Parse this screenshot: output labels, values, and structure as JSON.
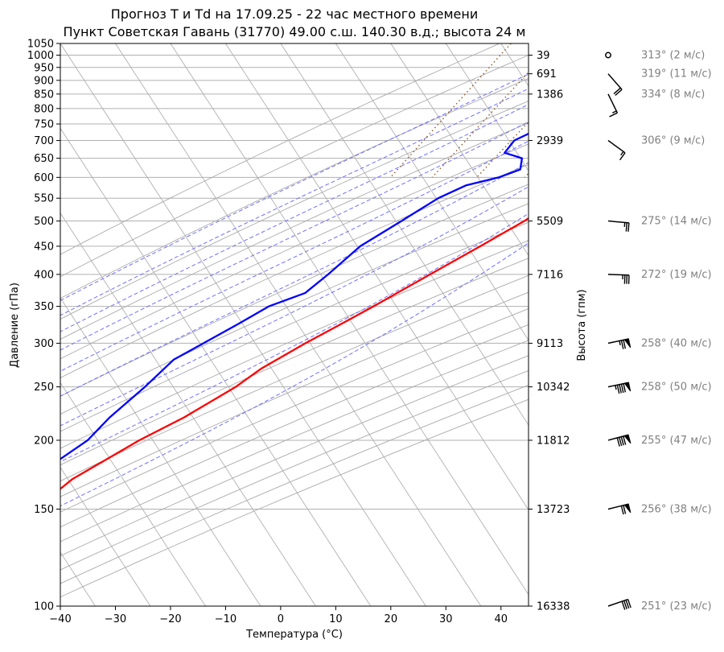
{
  "chart_data": {
    "type": "line",
    "title_line1": "Прогноз T и Td на 17.09.25 - 22 час местного времени",
    "title_line2": "Пункт Советская Гавань (31770) 49.00 с.ш. 140.30 в.д.; высота 24 м",
    "xlabel": "Температура (°C)",
    "ylabel": "Давление (гПа)",
    "ylabel_right": "Высота (гпм)",
    "xlim": [
      -40,
      45
    ],
    "ylim": [
      1050,
      100
    ],
    "y_scale": "log",
    "x_ticks": [
      "−40",
      "−30",
      "−20",
      "−10",
      "0",
      "10",
      "20",
      "30",
      "40"
    ],
    "y_ticks": [
      {
        "p": 100,
        "label": "100"
      },
      {
        "p": 150,
        "label": "150"
      },
      {
        "p": 200,
        "label": "200"
      },
      {
        "p": 250,
        "label": "250"
      },
      {
        "p": 300,
        "label": "300"
      },
      {
        "p": 350,
        "label": "350"
      },
      {
        "p": 400,
        "label": "400"
      },
      {
        "p": 450,
        "label": "450"
      },
      {
        "p": 500,
        "label": "500"
      },
      {
        "p": 550,
        "label": "550"
      },
      {
        "p": 600,
        "label": "600"
      },
      {
        "p": 650,
        "label": "650"
      },
      {
        "p": 700,
        "label": "700"
      },
      {
        "p": 750,
        "label": "750"
      },
      {
        "p": 800,
        "label": "800"
      },
      {
        "p": 850,
        "label": "850"
      },
      {
        "p": 900,
        "label": "900"
      },
      {
        "p": 950,
        "label": "950"
      },
      {
        "p": 1000,
        "label": "1000"
      },
      {
        "p": 1050,
        "label": "1050"
      }
    ],
    "height_labels": [
      {
        "p": 100,
        "label": "16338"
      },
      {
        "p": 150,
        "label": "13723"
      },
      {
        "p": 200,
        "label": "11812"
      },
      {
        "p": 250,
        "label": "10342"
      },
      {
        "p": 300,
        "label": "9113"
      },
      {
        "p": 400,
        "label": "7116"
      },
      {
        "p": 500,
        "label": "5509"
      },
      {
        "p": 700,
        "label": "2939"
      },
      {
        "p": 850,
        "label": "1386"
      },
      {
        "p": 925,
        "label": "691"
      },
      {
        "p": 1000,
        "label": "39"
      }
    ],
    "series": [
      {
        "color": "#ff0000",
        "points": [
          [
            1000,
            15.0
          ],
          [
            995,
            16.5
          ],
          [
            970,
            17.0
          ],
          [
            925,
            16.0
          ],
          [
            900,
            15.3
          ],
          [
            850,
            12.8
          ],
          [
            800,
            10.0
          ],
          [
            750,
            8.0
          ],
          [
            700,
            8.5
          ],
          [
            650,
            7.6
          ],
          [
            600,
            6.0
          ],
          [
            550,
            2.7
          ],
          [
            500,
            -1.2
          ],
          [
            450,
            -6.2
          ],
          [
            400,
            -12.0
          ],
          [
            350,
            -18.5
          ],
          [
            325,
            -22.3
          ],
          [
            300,
            -26.5
          ],
          [
            270,
            -31.5
          ],
          [
            250,
            -34.0
          ],
          [
            220,
            -39.8
          ],
          [
            200,
            -45.2
          ],
          [
            170,
            -52.8
          ],
          [
            150,
            -56.0
          ],
          [
            130,
            -59.5
          ],
          [
            115,
            -62.0
          ],
          [
            100,
            -63.0
          ]
        ]
      },
      {
        "color": "#0000ff",
        "points": [
          [
            1000,
            8.5
          ],
          [
            985,
            7.0
          ],
          [
            950,
            6.2
          ],
          [
            925,
            3.3
          ],
          [
            900,
            0.0
          ],
          [
            850,
            -4.5
          ],
          [
            800,
            -6.5
          ],
          [
            760,
            -7.3
          ],
          [
            700,
            -12.5
          ],
          [
            665,
            -12.8
          ],
          [
            650,
            -9.0
          ],
          [
            620,
            -8.0
          ],
          [
            600,
            -11.0
          ],
          [
            580,
            -16.0
          ],
          [
            550,
            -19.5
          ],
          [
            500,
            -23.5
          ],
          [
            450,
            -28.0
          ],
          [
            400,
            -30.5
          ],
          [
            370,
            -32.5
          ],
          [
            350,
            -37.5
          ],
          [
            325,
            -41.0
          ],
          [
            300,
            -45.0
          ],
          [
            280,
            -48.5
          ],
          [
            250,
            -50.5
          ],
          [
            220,
            -53.3
          ],
          [
            200,
            -54.6
          ],
          [
            170,
            -60.3
          ],
          [
            150,
            -63.3
          ],
          [
            130,
            -66.0
          ],
          [
            115,
            -69.3
          ],
          [
            100,
            -72.3
          ]
        ]
      }
    ],
    "dry_adiabats_theta_C": [
      -30,
      -20,
      -10,
      0,
      10,
      20,
      30,
      40,
      50,
      60,
      70,
      80,
      90,
      100,
      110,
      120,
      130,
      140,
      150,
      160,
      170
    ],
    "moist_adiabats_C": [
      -10,
      -5,
      0,
      5,
      10,
      15,
      20,
      25,
      30
    ],
    "mixing_ratio_lines_gkg": [
      0.5,
      1,
      2,
      4,
      8,
      12,
      16,
      24
    ],
    "parcel_line": [
      [
        1000,
        15.0
      ],
      [
        370,
        40.5
      ]
    ],
    "wind_barbs": [
      {
        "p": 100,
        "label": "251° (23 м/с)"
      },
      {
        "p": 150,
        "label": "256° (38 м/с)"
      },
      {
        "p": 200,
        "label": "255° (47 м/с)"
      },
      {
        "p": 250,
        "label": "258° (50 м/с)"
      },
      {
        "p": 300,
        "label": "258° (40 м/с)"
      },
      {
        "p": 400,
        "label": "272° (19 м/с)"
      },
      {
        "p": 500,
        "label": "275° (14 м/с)"
      },
      {
        "p": 700,
        "label": "306° (9 м/с)"
      },
      {
        "p": 850,
        "label": "334° (8 м/с)"
      },
      {
        "p": 925,
        "label": "319° (11 м/с)"
      },
      {
        "p": 1000,
        "label": "313° (2 м/с)"
      }
    ]
  },
  "colors": {
    "temperature": "#ff0000",
    "dewpoint": "#0000ff",
    "dry_adiabats": "#aaaaaa",
    "moist_adiabats": "#6f6fff",
    "mixing_ratio": "#8b5a2b",
    "wind_labels": "#808080"
  }
}
